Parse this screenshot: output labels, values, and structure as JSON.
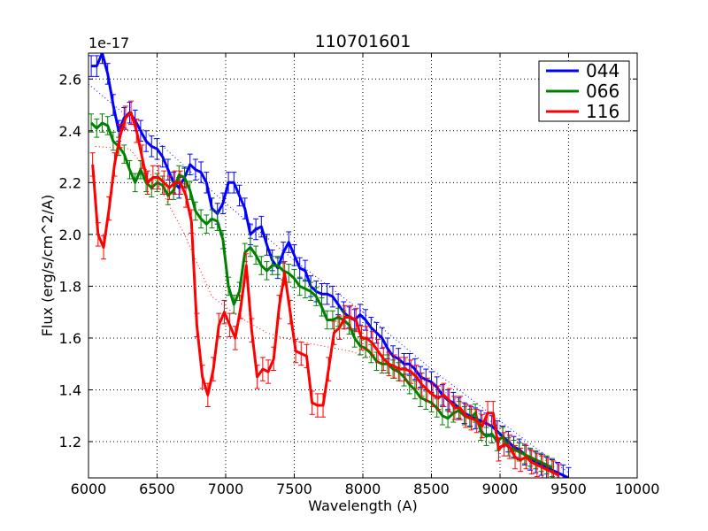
{
  "chart_data": {
    "type": "line",
    "title": "110701601",
    "xlabel": "Wavelength (A)",
    "ylabel": "Flux (erg/s/cm^2/A)",
    "offset_label": "1e-17",
    "xlim": [
      6000,
      10000
    ],
    "ylim": [
      1.06,
      2.7
    ],
    "xticks": [
      6000,
      6500,
      7000,
      7500,
      8000,
      8500,
      9000,
      9500,
      10000
    ],
    "xtick_labels": [
      "6000",
      "6500",
      "7000",
      "7500",
      "8000",
      "8500",
      "9000",
      "9500",
      "10000"
    ],
    "yticks": [
      1.2,
      1.4,
      1.6,
      1.8,
      2.0,
      2.2,
      2.4,
      2.6
    ],
    "ytick_labels": [
      "1.2",
      "1.4",
      "1.6",
      "1.8",
      "2.0",
      "2.2",
      "2.4",
      "2.6"
    ],
    "grid": true,
    "legend_position": "top-right",
    "series": [
      {
        "name": "044",
        "color": "#0000ff",
        "x": [
          6020,
          6060,
          6100,
          6140,
          6180,
          6220,
          6260,
          6300,
          6340,
          6380,
          6420,
          6460,
          6500,
          6540,
          6580,
          6620,
          6660,
          6700,
          6740,
          6780,
          6820,
          6860,
          6900,
          6940,
          6980,
          7020,
          7060,
          7100,
          7140,
          7180,
          7220,
          7260,
          7300,
          7340,
          7380,
          7420,
          7460,
          7500,
          7540,
          7580,
          7620,
          7660,
          7700,
          7740,
          7780,
          7820,
          7860,
          7900,
          7940,
          7980,
          8020,
          8060,
          8100,
          8140,
          8180,
          8220,
          8260,
          8300,
          8340,
          8380,
          8420,
          8460,
          8500,
          8540,
          8580,
          8620,
          8660,
          8700,
          8740,
          8780,
          8820,
          8860,
          8900,
          8940,
          8980,
          9020,
          9060,
          9100,
          9140,
          9180,
          9220,
          9260,
          9300,
          9340,
          9380,
          9420,
          9460,
          9500
        ],
        "y": [
          2.65,
          2.65,
          2.7,
          2.62,
          2.5,
          2.4,
          2.45,
          2.47,
          2.44,
          2.4,
          2.36,
          2.34,
          2.33,
          2.3,
          2.25,
          2.2,
          2.18,
          2.22,
          2.27,
          2.25,
          2.24,
          2.2,
          2.1,
          2.08,
          2.12,
          2.2,
          2.2,
          2.15,
          2.1,
          2.0,
          2.02,
          2.03,
          1.96,
          1.9,
          1.87,
          1.93,
          1.97,
          1.92,
          1.87,
          1.86,
          1.8,
          1.78,
          1.77,
          1.77,
          1.76,
          1.73,
          1.7,
          1.68,
          1.67,
          1.69,
          1.67,
          1.64,
          1.62,
          1.6,
          1.56,
          1.53,
          1.52,
          1.5,
          1.5,
          1.48,
          1.45,
          1.44,
          1.43,
          1.41,
          1.38,
          1.36,
          1.35,
          1.33,
          1.31,
          1.3,
          1.29,
          1.28,
          1.27,
          1.26,
          1.24,
          1.22,
          1.2,
          1.18,
          1.17,
          1.15,
          1.13,
          1.12,
          1.11,
          1.1,
          1.09,
          1.08,
          1.07,
          1.06
        ],
        "error": 0.04,
        "continuum_x": [
          6000,
          6500,
          7000,
          7500,
          8000,
          8500,
          9000,
          9500
        ],
        "continuum_y": [
          2.58,
          2.36,
          2.12,
          1.9,
          1.7,
          1.48,
          1.28,
          1.08
        ]
      },
      {
        "name": "066",
        "color": "#008000",
        "x": [
          6020,
          6060,
          6100,
          6140,
          6180,
          6220,
          6260,
          6300,
          6340,
          6380,
          6420,
          6460,
          6500,
          6540,
          6580,
          6620,
          6660,
          6700,
          6740,
          6780,
          6820,
          6860,
          6900,
          6940,
          6980,
          7020,
          7060,
          7100,
          7140,
          7180,
          7220,
          7260,
          7300,
          7340,
          7380,
          7420,
          7460,
          7500,
          7540,
          7580,
          7620,
          7660,
          7700,
          7740,
          7780,
          7820,
          7860,
          7900,
          7940,
          7980,
          8020,
          8060,
          8100,
          8140,
          8180,
          8220,
          8260,
          8300,
          8340,
          8380,
          8420,
          8460,
          8500,
          8540,
          8580,
          8620,
          8660,
          8700,
          8740,
          8780,
          8820,
          8860,
          8900,
          8940,
          8980,
          9020,
          9060,
          9100,
          9140,
          9180,
          9220,
          9260,
          9300,
          9340,
          9380
        ],
        "y": [
          2.43,
          2.41,
          2.43,
          2.42,
          2.36,
          2.34,
          2.31,
          2.25,
          2.2,
          2.25,
          2.2,
          2.18,
          2.2,
          2.19,
          2.15,
          2.17,
          2.23,
          2.22,
          2.17,
          2.09,
          2.06,
          2.04,
          2.06,
          2.05,
          1.98,
          1.8,
          1.73,
          1.78,
          1.93,
          1.95,
          1.92,
          1.88,
          1.86,
          1.88,
          1.88,
          1.86,
          1.85,
          1.83,
          1.8,
          1.79,
          1.78,
          1.76,
          1.72,
          1.67,
          1.67,
          1.68,
          1.67,
          1.65,
          1.6,
          1.57,
          1.56,
          1.54,
          1.51,
          1.5,
          1.5,
          1.48,
          1.47,
          1.45,
          1.42,
          1.4,
          1.37,
          1.36,
          1.35,
          1.33,
          1.3,
          1.29,
          1.31,
          1.32,
          1.3,
          1.29,
          1.31,
          1.24,
          1.22,
          1.23,
          1.2,
          1.22,
          1.18,
          1.17,
          1.16,
          1.15,
          1.14,
          1.13,
          1.12,
          1.11,
          1.1
        ],
        "error": 0.035
      },
      {
        "name": "116",
        "color": "#ff0000",
        "x": [
          6030,
          6070,
          6110,
          6150,
          6190,
          6230,
          6270,
          6310,
          6350,
          6390,
          6430,
          6470,
          6510,
          6550,
          6590,
          6630,
          6670,
          6710,
          6750,
          6790,
          6830,
          6870,
          6910,
          6950,
          6990,
          7030,
          7070,
          7110,
          7150,
          7190,
          7230,
          7270,
          7310,
          7350,
          7390,
          7430,
          7470,
          7510,
          7550,
          7590,
          7630,
          7670,
          7710,
          7750,
          7790,
          7830,
          7870,
          7910,
          7950,
          7990,
          8030,
          8070,
          8110,
          8150,
          8190,
          8230,
          8270,
          8310,
          8350,
          8390,
          8430,
          8470,
          8510,
          8550,
          8590,
          8630,
          8670,
          8710,
          8750,
          8790,
          8830,
          8870,
          8910,
          8950,
          8990,
          9030,
          9070,
          9110,
          9150,
          9190,
          9230,
          9270,
          9310,
          9350,
          9390,
          9430
        ],
        "y": [
          2.27,
          2.0,
          1.95,
          2.1,
          2.27,
          2.38,
          2.45,
          2.47,
          2.4,
          2.3,
          2.2,
          2.22,
          2.22,
          2.2,
          2.18,
          2.2,
          2.2,
          2.15,
          2.05,
          1.65,
          1.45,
          1.38,
          1.48,
          1.65,
          1.7,
          1.65,
          1.6,
          1.72,
          1.88,
          1.63,
          1.45,
          1.48,
          1.47,
          1.52,
          1.72,
          1.85,
          1.7,
          1.55,
          1.54,
          1.53,
          1.35,
          1.34,
          1.34,
          1.48,
          1.62,
          1.64,
          1.68,
          1.68,
          1.67,
          1.6,
          1.6,
          1.58,
          1.55,
          1.52,
          1.5,
          1.49,
          1.48,
          1.48,
          1.47,
          1.45,
          1.42,
          1.4,
          1.38,
          1.37,
          1.38,
          1.36,
          1.33,
          1.33,
          1.3,
          1.29,
          1.28,
          1.26,
          1.31,
          1.31,
          1.17,
          1.19,
          1.18,
          1.14,
          1.13,
          1.14,
          1.12,
          1.11,
          1.1,
          1.09,
          1.08,
          1.07
        ],
        "error": 0.045,
        "continuum_x": [
          6050,
          6300,
          6500,
          6700,
          6900,
          7100,
          7300,
          7500,
          7700,
          7900,
          8100,
          8300,
          8500,
          8700,
          8900,
          9100,
          9300,
          9400
        ],
        "continuum_y": [
          2.34,
          2.33,
          2.2,
          2.0,
          1.76,
          1.68,
          1.62,
          1.59,
          1.57,
          1.55,
          1.52,
          1.48,
          1.42,
          1.36,
          1.29,
          1.22,
          1.14,
          1.1
        ]
      }
    ]
  }
}
